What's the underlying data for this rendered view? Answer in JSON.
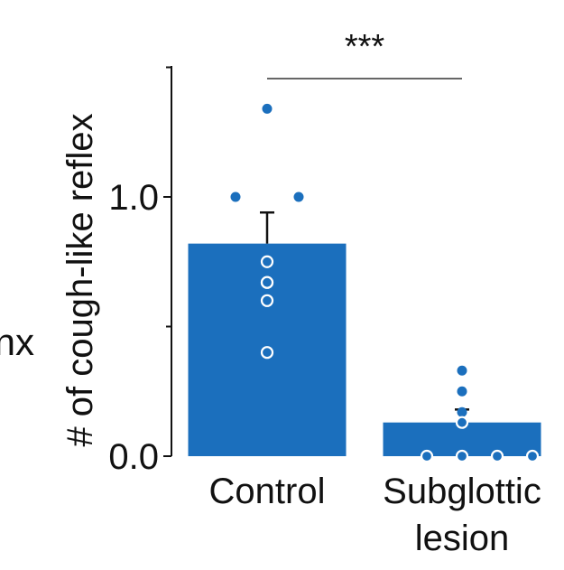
{
  "chart_data": {
    "type": "bar",
    "title": "",
    "xlabel": "",
    "ylabel": "# of cough-like reflex",
    "ylim": [
      0,
      1.5
    ],
    "yticks": [
      0.0,
      1.0
    ],
    "ytick_labels": [
      "0.0",
      "1.0"
    ],
    "categories": [
      "Control",
      "Subglottic lesion"
    ],
    "category_lines": [
      [
        "Control"
      ],
      [
        "Subglottic",
        "lesion"
      ]
    ],
    "values": [
      0.82,
      0.13
    ],
    "error": [
      0.12,
      0.05
    ],
    "points_filled": [
      [
        1.34,
        1.0,
        1.0
      ],
      [
        0.33,
        0.25,
        0.17
      ]
    ],
    "points_open": [
      [
        0.75,
        0.67,
        0.67,
        0.6,
        0.4
      ],
      [
        0.13,
        0.0,
        0.0,
        0.0,
        0.0
      ]
    ],
    "significance": "***",
    "left_fragment": "nx",
    "bar_color": "#1b6fbd",
    "grid": false
  }
}
